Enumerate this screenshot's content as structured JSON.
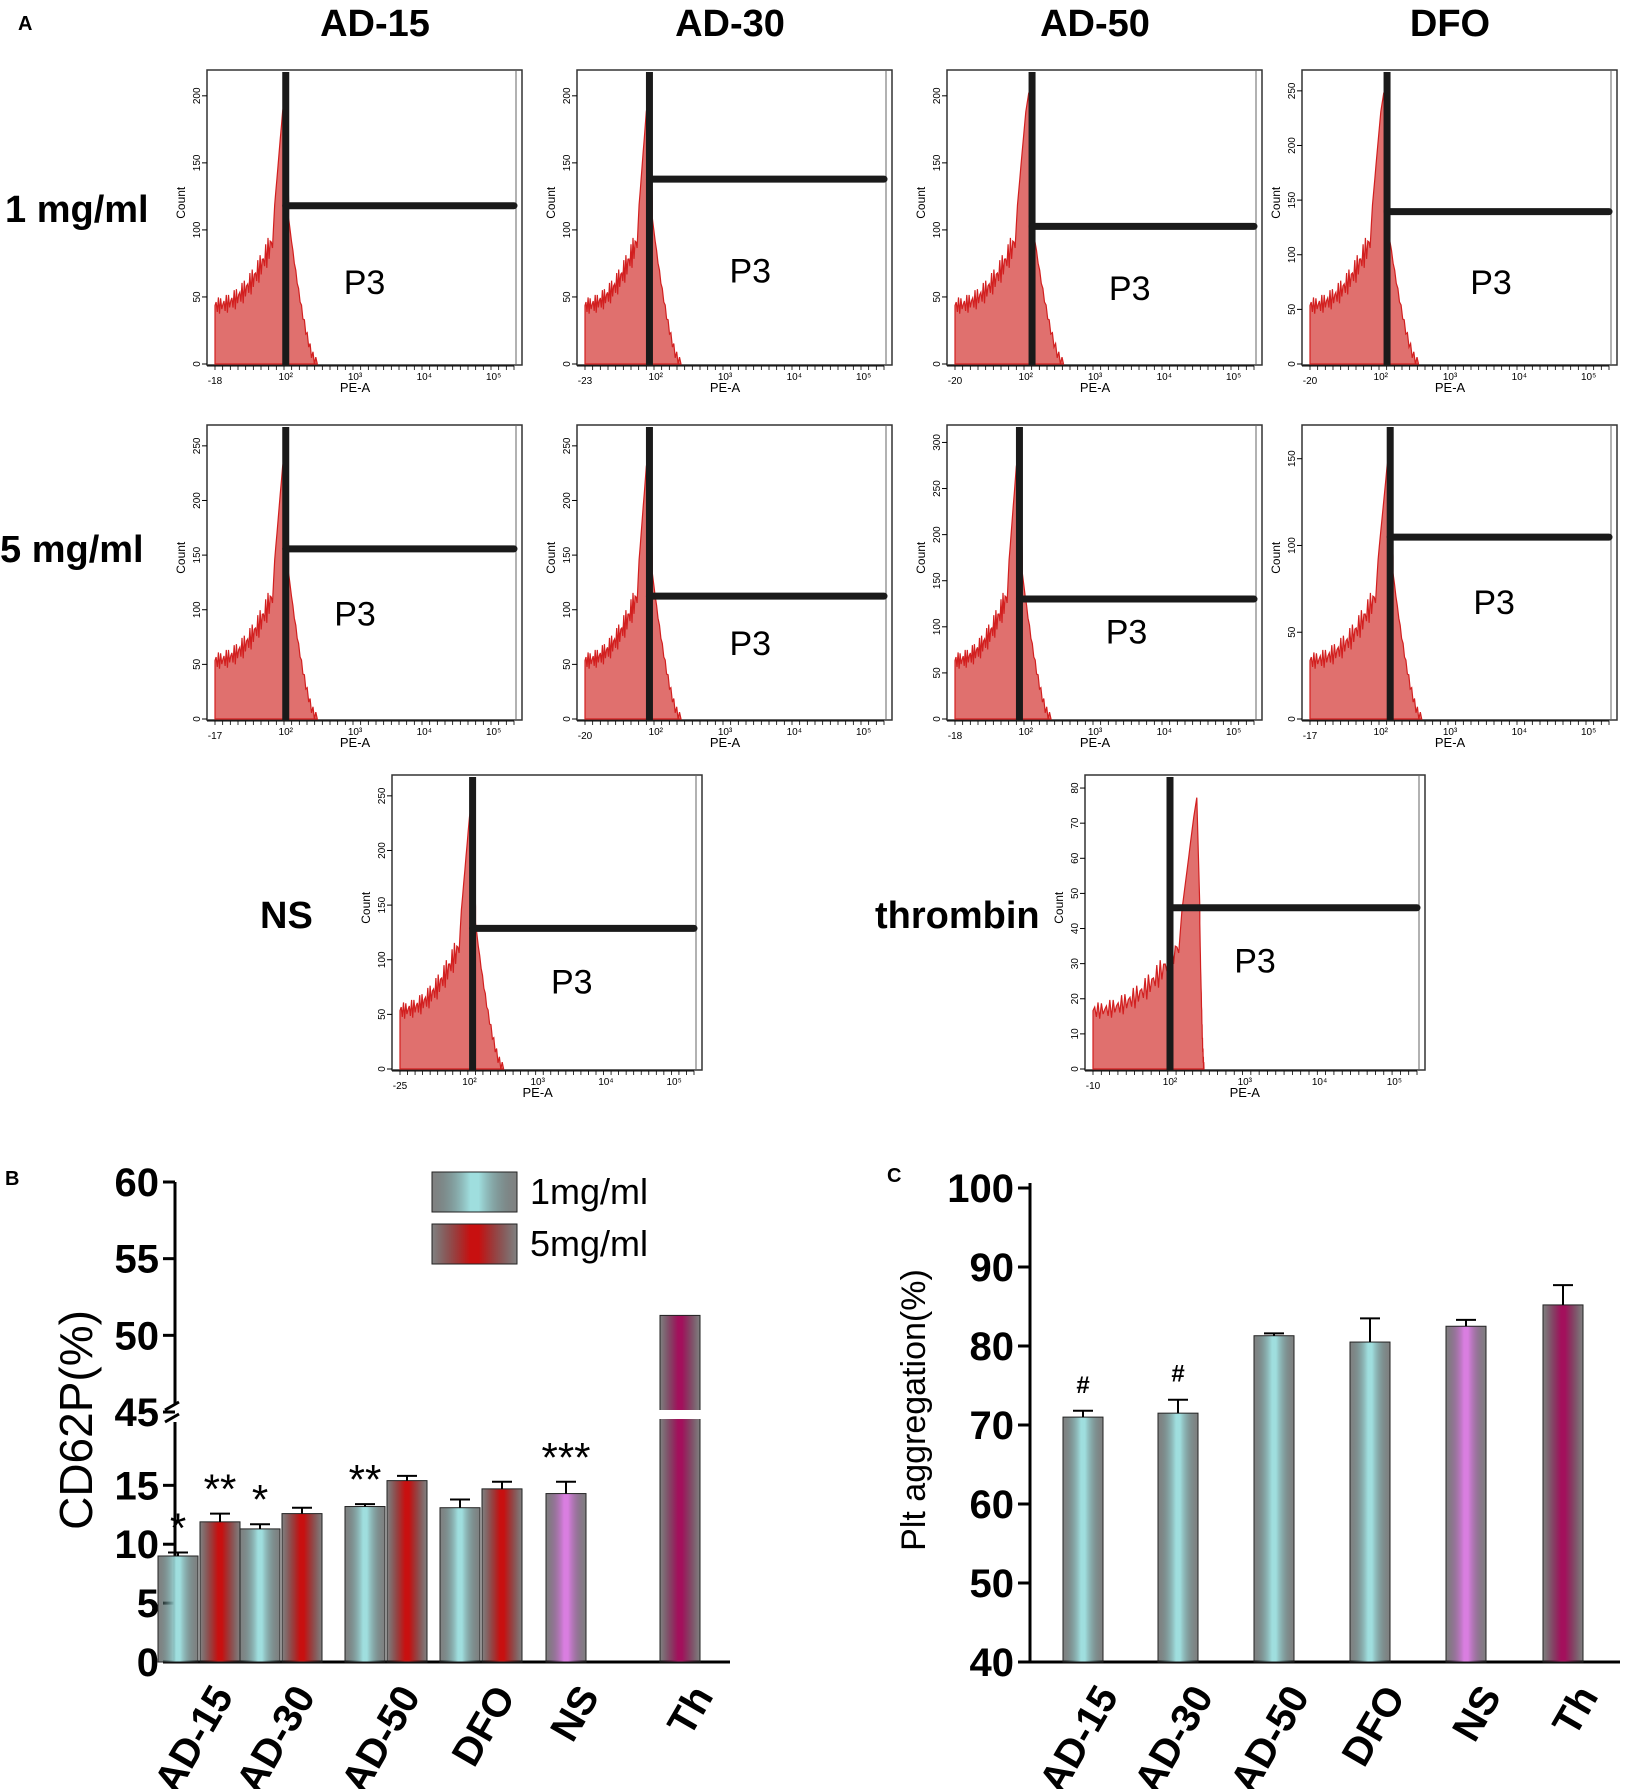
{
  "panel_labels": {
    "a": "A",
    "b": "B",
    "c": "C"
  },
  "colors": {
    "histogram_fill": "#e0706e",
    "histogram_edge": "#d21f1f",
    "gate": "#1a1a1a",
    "bar_1mg": "#9fdede",
    "bar_5mg": "#c81010",
    "bar_ns": "#d97ee0",
    "bar_th": "#a3105c"
  },
  "chart_data": [
    {
      "type": "histogram",
      "panel": "A",
      "column_headers": [
        "AD-15",
        "AD-30",
        "AD-50",
        "DFO"
      ],
      "row_labels": [
        "1 mg/ml",
        "5 mg/ml"
      ],
      "bottom_labels": [
        "NS",
        "thrombin"
      ],
      "xlabel": "PE-A",
      "ylabel": "Count",
      "gate_label": "P3",
      "x_tick_labels": [
        "10²",
        "10³",
        "10⁴",
        "10⁵"
      ],
      "plots": [
        {
          "condition": "AD-15",
          "dose": "1 mg/ml",
          "xmin_label": "-18",
          "yticks": [
            "0",
            "50",
            "100",
            "150",
            "200"
          ]
        },
        {
          "condition": "AD-30",
          "dose": "1 mg/ml",
          "xmin_label": "-23",
          "yticks": [
            "0",
            "50",
            "100",
            "150",
            "200"
          ]
        },
        {
          "condition": "AD-50",
          "dose": "1 mg/ml",
          "xmin_label": "-20",
          "yticks": [
            "0",
            "50",
            "100",
            "150",
            "200"
          ]
        },
        {
          "condition": "DFO",
          "dose": "1 mg/ml",
          "xmin_label": "-20",
          "yticks": [
            "0",
            "50",
            "100",
            "150",
            "200",
            "250"
          ]
        },
        {
          "condition": "AD-15",
          "dose": "5 mg/ml",
          "xmin_label": "-17",
          "yticks": [
            "0",
            "50",
            "100",
            "150",
            "200",
            "250"
          ]
        },
        {
          "condition": "AD-30",
          "dose": "5 mg/ml",
          "xmin_label": "-20",
          "yticks": [
            "0",
            "50",
            "100",
            "150",
            "200",
            "250"
          ]
        },
        {
          "condition": "AD-50",
          "dose": "5 mg/ml",
          "xmin_label": "-18",
          "yticks": [
            "0",
            "50",
            "100",
            "150",
            "200",
            "250",
            "300"
          ]
        },
        {
          "condition": "DFO",
          "dose": "5 mg/ml",
          "xmin_label": "-17",
          "yticks": [
            "0",
            "50",
            "100",
            "150"
          ]
        },
        {
          "condition": "NS",
          "dose": "",
          "xmin_label": "-25",
          "yticks": [
            "0",
            "50",
            "100",
            "150",
            "200",
            "250"
          ]
        },
        {
          "condition": "thrombin",
          "dose": "",
          "xmin_label": "-10",
          "yticks": [
            "0",
            "10",
            "20",
            "30",
            "40",
            "50",
            "60",
            "70",
            "80"
          ]
        }
      ]
    },
    {
      "type": "bar",
      "panel": "B",
      "ylabel": "CD62P(%)",
      "categories": [
        "AD-15",
        "AD-30",
        "AD-50",
        "DFO",
        "NS",
        "Th"
      ],
      "series": [
        {
          "name": "1mg/ml",
          "values": [
            9.0,
            11.3,
            13.2,
            13.1,
            null,
            null
          ],
          "errors": [
            0.3,
            0.4,
            0.2,
            0.7,
            null,
            null
          ]
        },
        {
          "name": "5mg/ml",
          "values": [
            11.9,
            12.6,
            15.4,
            14.7,
            null,
            null
          ],
          "errors": [
            0.7,
            0.5,
            0.4,
            0.6,
            null,
            null
          ]
        },
        {
          "name": "NS",
          "values": [
            null,
            null,
            null,
            null,
            14.3,
            null
          ],
          "errors": [
            null,
            null,
            null,
            null,
            1.0,
            null
          ]
        },
        {
          "name": "Th",
          "values": [
            null,
            null,
            null,
            null,
            null,
            51.3
          ],
          "errors": [
            null,
            null,
            null,
            null,
            null,
            0
          ]
        }
      ],
      "axis_break": {
        "lower": [
          0,
          18
        ],
        "upper": [
          45,
          60
        ]
      },
      "yticks_lower": [
        "0",
        "5",
        "10",
        "15"
      ],
      "yticks_upper": [
        "45",
        "50",
        "55",
        "60"
      ],
      "significance": [
        "*",
        "**",
        "*",
        "",
        "**",
        "",
        "",
        "",
        "***"
      ],
      "legend": [
        "1mg/ml",
        "5mg/ml"
      ]
    },
    {
      "type": "bar",
      "panel": "C",
      "ylabel": "Plt aggregation(%)",
      "categories": [
        "AD-15",
        "AD-30",
        "AD-50",
        "DFO",
        "NS",
        "Th"
      ],
      "values": [
        71.0,
        71.5,
        81.3,
        80.5,
        82.5,
        85.2
      ],
      "errors": [
        0.8,
        1.7,
        0.3,
        3.0,
        0.8,
        2.5
      ],
      "ylim": [
        40,
        100
      ],
      "yticks": [
        "40",
        "50",
        "60",
        "70",
        "80",
        "90",
        "100"
      ],
      "annotations": [
        "#",
        "#",
        "",
        "",
        "",
        ""
      ]
    }
  ]
}
